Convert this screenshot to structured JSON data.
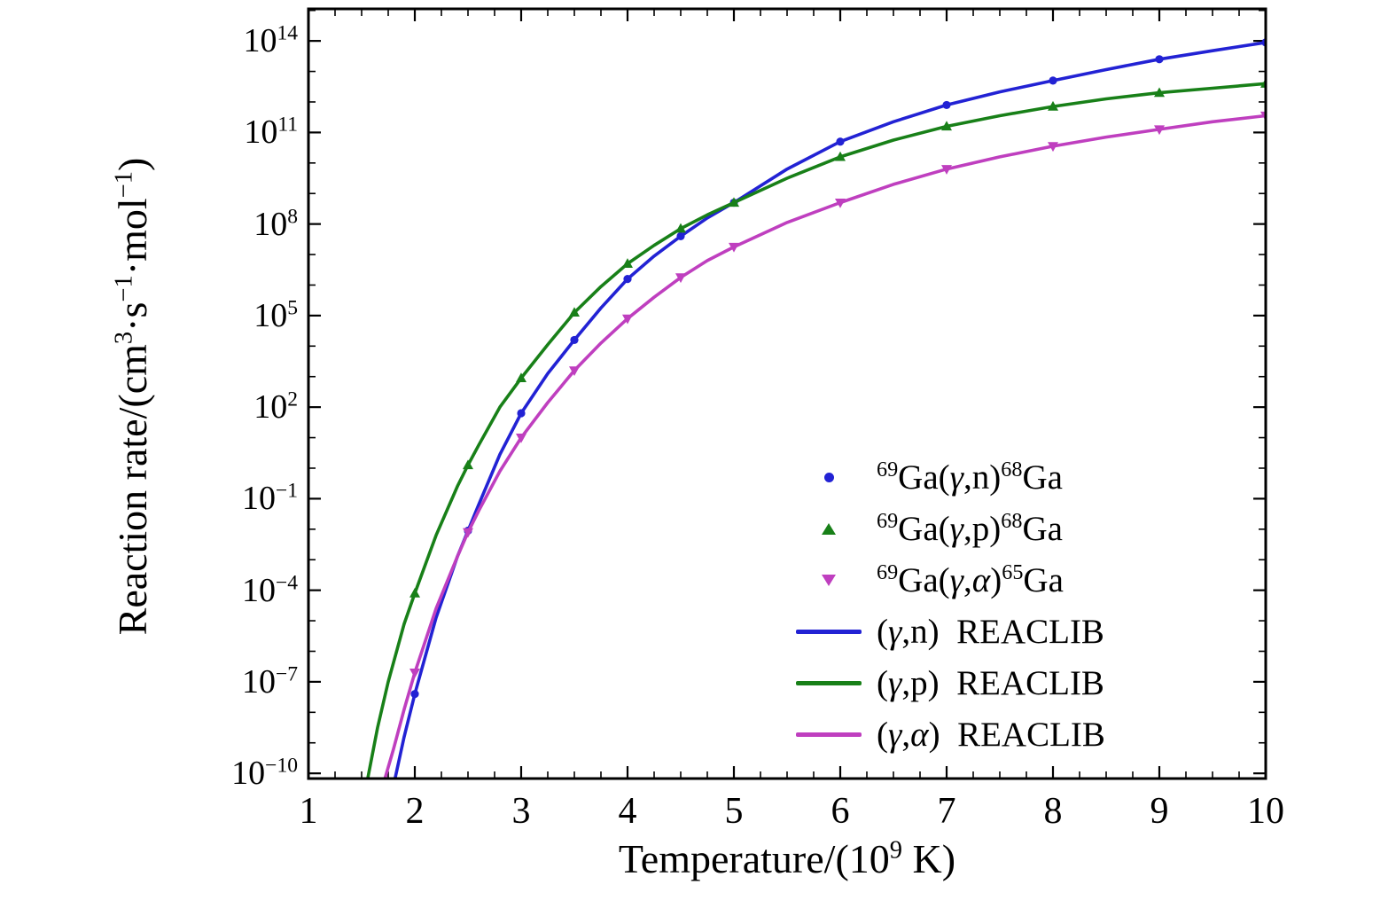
{
  "chart_data": {
    "type": "line",
    "title": "",
    "xlabel_runs": [
      {
        "t": "Temperature/(10"
      },
      {
        "t": "9",
        "s": "sup"
      },
      {
        "t": " K)"
      }
    ],
    "ylabel_runs": [
      {
        "t": "Reaction rate/(cm"
      },
      {
        "t": "3",
        "s": "sup"
      },
      {
        "t": "·s"
      },
      {
        "t": "−1",
        "s": "sup"
      },
      {
        "t": "·mol"
      },
      {
        "t": "−1",
        "s": "sup"
      },
      {
        "t": ")"
      }
    ],
    "xlim": [
      1,
      10
    ],
    "ylog_lim": [
      -10.17,
      15.05
    ],
    "grid": "off",
    "legend_position": "lower right inside",
    "xticks": [
      {
        "x": 1,
        "label": "1"
      },
      {
        "x": 2,
        "label": "2"
      },
      {
        "x": 3,
        "label": "3"
      },
      {
        "x": 4,
        "label": "4"
      },
      {
        "x": 5,
        "label": "5"
      },
      {
        "x": 6,
        "label": "6"
      },
      {
        "x": 7,
        "label": "7"
      },
      {
        "x": 8,
        "label": "8"
      },
      {
        "x": 9,
        "label": "9"
      },
      {
        "x": 10,
        "label": "10"
      }
    ],
    "yticks_major": [
      {
        "log": 14,
        "base": "10",
        "exp": "14"
      },
      {
        "log": 11,
        "base": "10",
        "exp": "11"
      },
      {
        "log": 8,
        "base": "10",
        "exp": "8"
      },
      {
        "log": 5,
        "base": "10",
        "exp": "5"
      },
      {
        "log": 2,
        "base": "10",
        "exp": "2"
      },
      {
        "log": -1,
        "base": "10",
        "exp": "−1"
      },
      {
        "log": -4,
        "base": "10",
        "exp": "−4"
      },
      {
        "log": -7,
        "base": "10",
        "exp": "−7"
      },
      {
        "log": -10,
        "base": "10",
        "exp": "−10"
      }
    ],
    "series": [
      {
        "id": "gamma-n",
        "name": "(γ,n) REACLIB",
        "color": "#2222d4",
        "marker": "circle",
        "x": [
          1.8,
          1.9,
          2.0,
          2.2,
          2.4,
          2.5,
          2.6,
          2.8,
          3.0,
          3.25,
          3.5,
          3.75,
          4.0,
          4.25,
          4.5,
          4.75,
          5.0,
          5.5,
          6.0,
          6.5,
          7.0,
          7.5,
          8.0,
          8.5,
          9.0,
          9.5,
          10.0
        ],
        "log10y": [
          -10.4,
          -8.8,
          -7.4,
          -4.9,
          -2.9,
          -2.05,
          -1.2,
          0.45,
          1.8,
          3.1,
          4.2,
          5.25,
          6.2,
          6.95,
          7.6,
          8.2,
          8.7,
          9.8,
          10.7,
          11.35,
          11.9,
          12.33,
          12.7,
          13.06,
          13.4,
          13.68,
          13.95
        ],
        "marker_x": [
          2,
          2.5,
          3,
          3.5,
          4,
          4.5,
          5,
          6,
          7,
          8,
          9,
          10
        ],
        "marker_log10y": [
          -7.4,
          -2.05,
          1.8,
          4.2,
          6.2,
          7.6,
          8.7,
          10.7,
          11.9,
          12.7,
          13.4,
          13.95
        ]
      },
      {
        "id": "gamma-p",
        "name": "(γ,p) REACLIB",
        "color": "#188018",
        "marker": "tri-up",
        "x": [
          1.55,
          1.65,
          1.75,
          1.9,
          2.0,
          2.2,
          2.4,
          2.5,
          2.6,
          2.8,
          3.0,
          3.25,
          3.5,
          3.75,
          4.0,
          4.25,
          4.5,
          4.75,
          5.0,
          5.5,
          6.0,
          6.5,
          7.0,
          7.5,
          8.0,
          8.5,
          9.0,
          9.5,
          10.0
        ],
        "log10y": [
          -10.3,
          -8.5,
          -7.0,
          -5.1,
          -4.1,
          -2.2,
          -0.6,
          0.1,
          0.75,
          2.0,
          2.95,
          4.05,
          5.1,
          5.95,
          6.7,
          7.3,
          7.85,
          8.3,
          8.7,
          9.5,
          10.2,
          10.75,
          11.2,
          11.55,
          11.85,
          12.1,
          12.3,
          12.45,
          12.6
        ],
        "marker_x": [
          2,
          2.5,
          3,
          3.5,
          4,
          4.5,
          5,
          6,
          7,
          8,
          9,
          10
        ],
        "marker_log10y": [
          -4.1,
          0.1,
          2.95,
          5.1,
          6.7,
          7.85,
          8.7,
          10.2,
          11.2,
          11.85,
          12.3,
          12.6
        ]
      },
      {
        "id": "gamma-alpha",
        "name": "(γ,α) REACLIB",
        "color": "#bf3fbf",
        "marker": "tri-down",
        "x": [
          1.7,
          1.8,
          1.9,
          2.0,
          2.2,
          2.4,
          2.5,
          2.6,
          2.8,
          3.0,
          3.25,
          3.5,
          3.75,
          4.0,
          4.25,
          4.5,
          4.75,
          5.0,
          5.5,
          6.0,
          6.5,
          7.0,
          7.5,
          8.0,
          8.5,
          9.0,
          9.5,
          10.0
        ],
        "log10y": [
          -10.4,
          -9.2,
          -7.9,
          -6.7,
          -4.6,
          -2.9,
          -2.1,
          -1.4,
          -0.1,
          1.0,
          2.15,
          3.2,
          4.1,
          4.9,
          5.6,
          6.25,
          6.8,
          7.25,
          8.05,
          8.7,
          9.3,
          9.8,
          10.2,
          10.55,
          10.85,
          11.1,
          11.35,
          11.55
        ],
        "marker_x": [
          2,
          2.5,
          3,
          3.5,
          4,
          4.5,
          5,
          6,
          7,
          8,
          9,
          10
        ],
        "marker_log10y": [
          -6.7,
          -2.1,
          1.0,
          3.2,
          4.9,
          6.25,
          7.25,
          8.7,
          9.8,
          10.55,
          11.1,
          11.55
        ]
      }
    ],
    "legend": {
      "items": [
        {
          "series": 0,
          "swatch": "circle",
          "runs": [
            {
              "t": "69",
              "s": "sup"
            },
            {
              "t": "Ga("
            },
            {
              "t": "γ",
              "s": "it"
            },
            {
              "t": ",n)"
            },
            {
              "t": "68",
              "s": "sup"
            },
            {
              "t": "Ga"
            }
          ]
        },
        {
          "series": 1,
          "swatch": "tri-up",
          "runs": [
            {
              "t": "69",
              "s": "sup"
            },
            {
              "t": "Ga("
            },
            {
              "t": "γ",
              "s": "it"
            },
            {
              "t": ",p)"
            },
            {
              "t": "68",
              "s": "sup"
            },
            {
              "t": "Ga"
            }
          ]
        },
        {
          "series": 2,
          "swatch": "tri-down",
          "runs": [
            {
              "t": "69",
              "s": "sup"
            },
            {
              "t": "Ga("
            },
            {
              "t": "γ",
              "s": "it"
            },
            {
              "t": ","
            },
            {
              "t": "α",
              "s": "it"
            },
            {
              "t": ")"
            },
            {
              "t": "65",
              "s": "sup"
            },
            {
              "t": "Ga"
            }
          ]
        },
        {
          "series": 0,
          "swatch": "line",
          "runs": [
            {
              "t": "("
            },
            {
              "t": "γ",
              "s": "it"
            },
            {
              "t": ",n) REACLIB"
            }
          ]
        },
        {
          "series": 1,
          "swatch": "line",
          "runs": [
            {
              "t": "("
            },
            {
              "t": "γ",
              "s": "it"
            },
            {
              "t": ",p) REACLIB"
            }
          ]
        },
        {
          "series": 2,
          "swatch": "line",
          "runs": [
            {
              "t": "("
            },
            {
              "t": "γ",
              "s": "it"
            },
            {
              "t": ","
            },
            {
              "t": "α",
              "s": "it"
            },
            {
              "t": ") REACLIB"
            }
          ]
        }
      ]
    }
  }
}
